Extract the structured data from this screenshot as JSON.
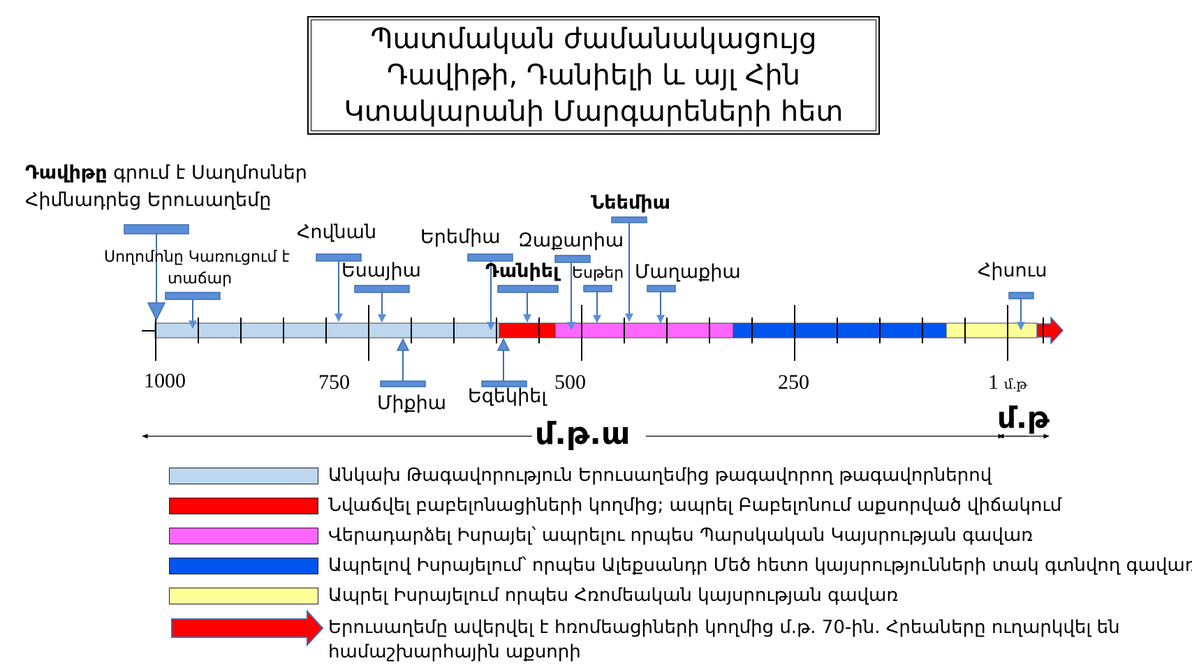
{
  "title": {
    "line1": "Պատմական ժամանակացույց",
    "line2": "Դավիթի, Դանիելի և այլ Հին",
    "line3": "Կտակարանի Մարգարեների հետ"
  },
  "timeline": {
    "axis_labels": {
      "t1000": "1000",
      "t750": "750",
      "t500": "500",
      "t250": "250",
      "t1": "1",
      "t1_suffix": "մ.թ"
    },
    "era_bce": "մ.թ.ա",
    "era_ce": "մ.թ",
    "periods": [
      {
        "name": "independent-kingdom",
        "color": "#bdd7ee",
        "from": 1000,
        "to": 586
      },
      {
        "name": "babylonian-captivity",
        "color": "#ff0000",
        "from": 586,
        "to": 516
      },
      {
        "name": "persian-province",
        "color": "#ff66ff",
        "from": 516,
        "to": 332
      },
      {
        "name": "hellenistic-province",
        "color": "#0055ee",
        "from": 332,
        "to": 63
      },
      {
        "name": "roman-province",
        "color": "#ffff99",
        "from": 63,
        "to": 1
      }
    ],
    "events": {
      "david_name": "Դավիթը",
      "david_rest": " գրում է Սաղմոսներ",
      "david_line2": "Հիմնադրեց Երուսաղեմը",
      "solomon_line1": "Սողոմոնը Կառուցում է",
      "solomon_line2": "տաճար",
      "jonah": "Հովնան",
      "isaiah": "Եսայիա",
      "micah": "Միքիա",
      "jeremiah": "Երեմիա",
      "daniel": "Դանիել",
      "ezekiel": "Եզեկիել",
      "zechariah": "Զաքարիա",
      "esther": "Եսթեր",
      "nehemiah": "Նեեմիա",
      "malachi": "Մաղաքիա",
      "jesus": "Հիսուս"
    }
  },
  "legend": [
    {
      "color": "#bdd7ee",
      "text": "Անկախ Թագավորություն Երուսաղեմից թագավորող թագավորներով"
    },
    {
      "color": "#ff0000",
      "text": "Նվաճվել բաբելոնացիների կողմից; ապրել Բաբելոնում աքսորված վիճակում"
    },
    {
      "color": "#ff66ff",
      "text": "Վերադարձել  Իսրայել՝ ապրելու որպես Պարսկական Կայսրության գավառ"
    },
    {
      "color": "#0055ee",
      "text": "Ապրելով Իսրայելում՝ որպես Ալեքսանդր Մեծ հետո կայսրությունների տակ գտնվող գավառ"
    },
    {
      "color": "#ffff99",
      "text": "Ապրել Իսրայելում որպես Հռոմեական կայսրության գավառ"
    }
  ],
  "legend_arrow": {
    "color": "#ff0000",
    "text_line1": "Երուսաղեմը ավերվել է հռոմեացիների կողմից մ.թ. 70-ին. Հրեաները ուղարկվել են",
    "text_line2": "համաշխարհային աքսորի"
  }
}
